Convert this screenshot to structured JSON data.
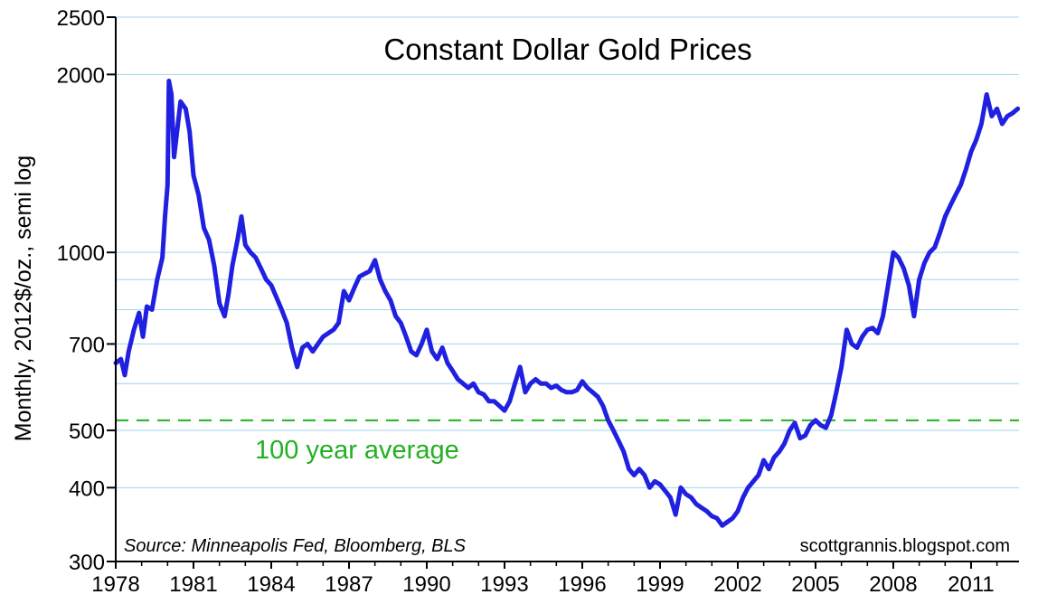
{
  "chart_data": {
    "type": "line",
    "title": "Constant Dollar Gold Prices",
    "ylabel": "Monthly, 2012$/oz., semi log",
    "xlabel": "",
    "yscale": "log",
    "ylim": [
      300,
      2500
    ],
    "xlim": [
      1978.0,
      2012.85
    ],
    "y_ticks": [
      300,
      400,
      500,
      700,
      1000,
      2000,
      2500
    ],
    "y_gridlines": [
      300,
      400,
      500,
      600,
      700,
      800,
      900,
      1000,
      2000,
      2500
    ],
    "x_ticks": [
      1978,
      1981,
      1984,
      1987,
      1990,
      1993,
      1996,
      1999,
      2002,
      2005,
      2008,
      2011
    ],
    "grid": true,
    "source_note": "Source: Minneapolis Fed, Bloomberg, BLS",
    "credit": "scottgrannis.blogspot.com",
    "reference_line": {
      "label": "100 year average",
      "value": 520,
      "color": "#22b022"
    },
    "series": [
      {
        "color": "#2020e0",
        "points": [
          [
            1978.0,
            650
          ],
          [
            1978.2,
            660
          ],
          [
            1978.35,
            620
          ],
          [
            1978.5,
            680
          ],
          [
            1978.7,
            740
          ],
          [
            1978.9,
            790
          ],
          [
            1979.05,
            720
          ],
          [
            1979.2,
            810
          ],
          [
            1979.4,
            800
          ],
          [
            1979.6,
            900
          ],
          [
            1979.8,
            980
          ],
          [
            1979.9,
            1150
          ],
          [
            1980.0,
            1300
          ],
          [
            1980.05,
            1950
          ],
          [
            1980.15,
            1850
          ],
          [
            1980.25,
            1450
          ],
          [
            1980.4,
            1650
          ],
          [
            1980.5,
            1800
          ],
          [
            1980.7,
            1750
          ],
          [
            1980.85,
            1600
          ],
          [
            1981.0,
            1350
          ],
          [
            1981.2,
            1250
          ],
          [
            1981.4,
            1100
          ],
          [
            1981.6,
            1050
          ],
          [
            1981.8,
            950
          ],
          [
            1982.0,
            820
          ],
          [
            1982.2,
            780
          ],
          [
            1982.35,
            850
          ],
          [
            1982.5,
            950
          ],
          [
            1982.7,
            1050
          ],
          [
            1982.85,
            1150
          ],
          [
            1983.0,
            1030
          ],
          [
            1983.2,
            1000
          ],
          [
            1983.4,
            980
          ],
          [
            1983.6,
            940
          ],
          [
            1983.8,
            900
          ],
          [
            1984.0,
            880
          ],
          [
            1984.2,
            840
          ],
          [
            1984.4,
            800
          ],
          [
            1984.6,
            760
          ],
          [
            1984.8,
            690
          ],
          [
            1985.0,
            640
          ],
          [
            1985.2,
            690
          ],
          [
            1985.4,
            700
          ],
          [
            1985.6,
            680
          ],
          [
            1985.8,
            700
          ],
          [
            1986.0,
            720
          ],
          [
            1986.2,
            730
          ],
          [
            1986.4,
            740
          ],
          [
            1986.6,
            760
          ],
          [
            1986.8,
            860
          ],
          [
            1987.0,
            830
          ],
          [
            1987.2,
            870
          ],
          [
            1987.4,
            910
          ],
          [
            1987.6,
            920
          ],
          [
            1987.8,
            930
          ],
          [
            1988.0,
            970
          ],
          [
            1988.2,
            900
          ],
          [
            1988.4,
            860
          ],
          [
            1988.6,
            830
          ],
          [
            1988.8,
            780
          ],
          [
            1989.0,
            760
          ],
          [
            1989.2,
            720
          ],
          [
            1989.4,
            680
          ],
          [
            1989.6,
            670
          ],
          [
            1989.8,
            700
          ],
          [
            1990.0,
            740
          ],
          [
            1990.2,
            680
          ],
          [
            1990.4,
            660
          ],
          [
            1990.6,
            690
          ],
          [
            1990.8,
            650
          ],
          [
            1991.0,
            630
          ],
          [
            1991.2,
            610
          ],
          [
            1991.4,
            600
          ],
          [
            1991.6,
            590
          ],
          [
            1991.8,
            600
          ],
          [
            1992.0,
            580
          ],
          [
            1992.2,
            575
          ],
          [
            1992.4,
            560
          ],
          [
            1992.6,
            560
          ],
          [
            1992.8,
            550
          ],
          [
            1993.0,
            540
          ],
          [
            1993.2,
            560
          ],
          [
            1993.4,
            600
          ],
          [
            1993.6,
            640
          ],
          [
            1993.8,
            580
          ],
          [
            1994.0,
            600
          ],
          [
            1994.2,
            610
          ],
          [
            1994.4,
            600
          ],
          [
            1994.6,
            600
          ],
          [
            1994.8,
            590
          ],
          [
            1995.0,
            595
          ],
          [
            1995.2,
            585
          ],
          [
            1995.4,
            580
          ],
          [
            1995.6,
            580
          ],
          [
            1995.8,
            585
          ],
          [
            1996.0,
            605
          ],
          [
            1996.2,
            590
          ],
          [
            1996.4,
            580
          ],
          [
            1996.6,
            570
          ],
          [
            1996.8,
            550
          ],
          [
            1997.0,
            520
          ],
          [
            1997.2,
            500
          ],
          [
            1997.4,
            480
          ],
          [
            1997.6,
            460
          ],
          [
            1997.8,
            430
          ],
          [
            1998.0,
            420
          ],
          [
            1998.2,
            430
          ],
          [
            1998.4,
            420
          ],
          [
            1998.6,
            400
          ],
          [
            1998.8,
            410
          ],
          [
            1999.0,
            405
          ],
          [
            1999.2,
            395
          ],
          [
            1999.4,
            385
          ],
          [
            1999.6,
            360
          ],
          [
            1999.8,
            400
          ],
          [
            2000.0,
            390
          ],
          [
            2000.2,
            385
          ],
          [
            2000.4,
            375
          ],
          [
            2000.6,
            370
          ],
          [
            2000.8,
            365
          ],
          [
            2001.0,
            358
          ],
          [
            2001.2,
            355
          ],
          [
            2001.4,
            345
          ],
          [
            2001.6,
            350
          ],
          [
            2001.8,
            355
          ],
          [
            2002.0,
            365
          ],
          [
            2002.2,
            385
          ],
          [
            2002.4,
            400
          ],
          [
            2002.6,
            410
          ],
          [
            2002.8,
            420
          ],
          [
            2003.0,
            445
          ],
          [
            2003.2,
            430
          ],
          [
            2003.4,
            450
          ],
          [
            2003.6,
            460
          ],
          [
            2003.8,
            475
          ],
          [
            2004.0,
            500
          ],
          [
            2004.2,
            515
          ],
          [
            2004.4,
            485
          ],
          [
            2004.6,
            490
          ],
          [
            2004.8,
            510
          ],
          [
            2005.0,
            520
          ],
          [
            2005.2,
            510
          ],
          [
            2005.4,
            505
          ],
          [
            2005.6,
            530
          ],
          [
            2005.8,
            580
          ],
          [
            2006.0,
            640
          ],
          [
            2006.2,
            740
          ],
          [
            2006.4,
            700
          ],
          [
            2006.6,
            690
          ],
          [
            2006.8,
            720
          ],
          [
            2007.0,
            740
          ],
          [
            2007.2,
            745
          ],
          [
            2007.4,
            730
          ],
          [
            2007.6,
            780
          ],
          [
            2007.8,
            880
          ],
          [
            2008.0,
            1000
          ],
          [
            2008.2,
            980
          ],
          [
            2008.4,
            940
          ],
          [
            2008.6,
            880
          ],
          [
            2008.8,
            780
          ],
          [
            2009.0,
            900
          ],
          [
            2009.2,
            960
          ],
          [
            2009.4,
            1000
          ],
          [
            2009.6,
            1020
          ],
          [
            2009.8,
            1080
          ],
          [
            2010.0,
            1150
          ],
          [
            2010.2,
            1200
          ],
          [
            2010.4,
            1250
          ],
          [
            2010.6,
            1300
          ],
          [
            2010.8,
            1380
          ],
          [
            2011.0,
            1480
          ],
          [
            2011.2,
            1550
          ],
          [
            2011.4,
            1650
          ],
          [
            2011.6,
            1850
          ],
          [
            2011.8,
            1700
          ],
          [
            2012.0,
            1750
          ],
          [
            2012.2,
            1650
          ],
          [
            2012.4,
            1700
          ],
          [
            2012.6,
            1720
          ],
          [
            2012.8,
            1750
          ]
        ]
      }
    ]
  }
}
